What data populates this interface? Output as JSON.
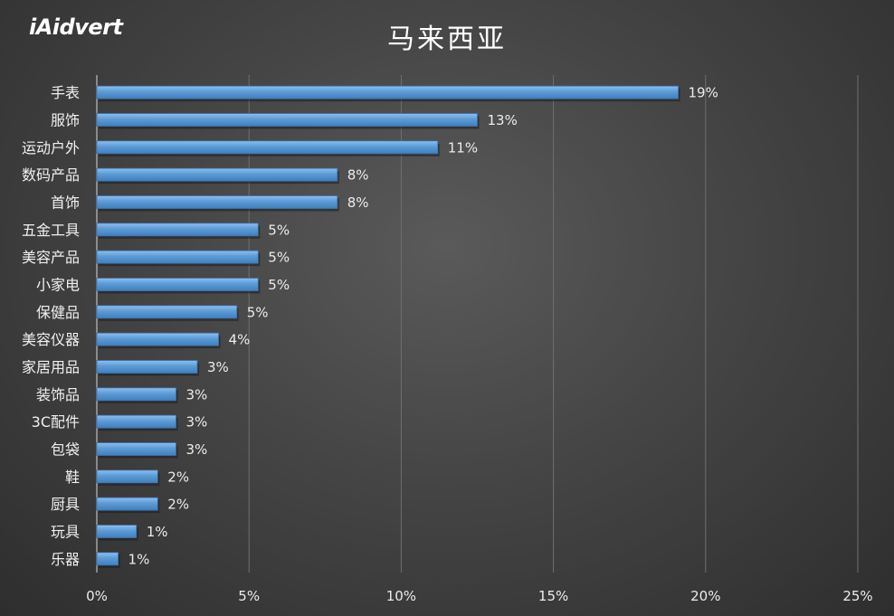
{
  "logo": {
    "text": "iAidvert"
  },
  "chart_data": {
    "type": "bar",
    "orientation": "horizontal",
    "title": "马来西亚",
    "categories": [
      "手表",
      "服饰",
      "运动户外",
      "数码产品",
      "首饰",
      "五金工具",
      "美容产品",
      "小家电",
      "保健品",
      "美容仪器",
      "家居用品",
      "装饰品",
      "3C配件",
      "包袋",
      "鞋",
      "厨具",
      "玩具",
      "乐器"
    ],
    "values": [
      19.1,
      12.5,
      11.2,
      7.9,
      7.9,
      5.3,
      5.3,
      5.3,
      4.6,
      4.0,
      3.3,
      2.6,
      2.6,
      2.6,
      2.0,
      2.0,
      1.3,
      0.7
    ],
    "data_labels": [
      "19%",
      "13%",
      "11%",
      "8%",
      "8%",
      "5%",
      "5%",
      "5%",
      "5%",
      "4%",
      "3%",
      "3%",
      "3%",
      "3%",
      "2%",
      "2%",
      "1%",
      "1%"
    ],
    "xlim": [
      0,
      25
    ],
    "xticks": [
      "0%",
      "5%",
      "10%",
      "15%",
      "20%",
      "25%"
    ],
    "xtick_values": [
      0,
      5,
      10,
      15,
      20,
      25
    ],
    "grid": true,
    "legend": "none",
    "bar_color": "#5b9bd5"
  }
}
